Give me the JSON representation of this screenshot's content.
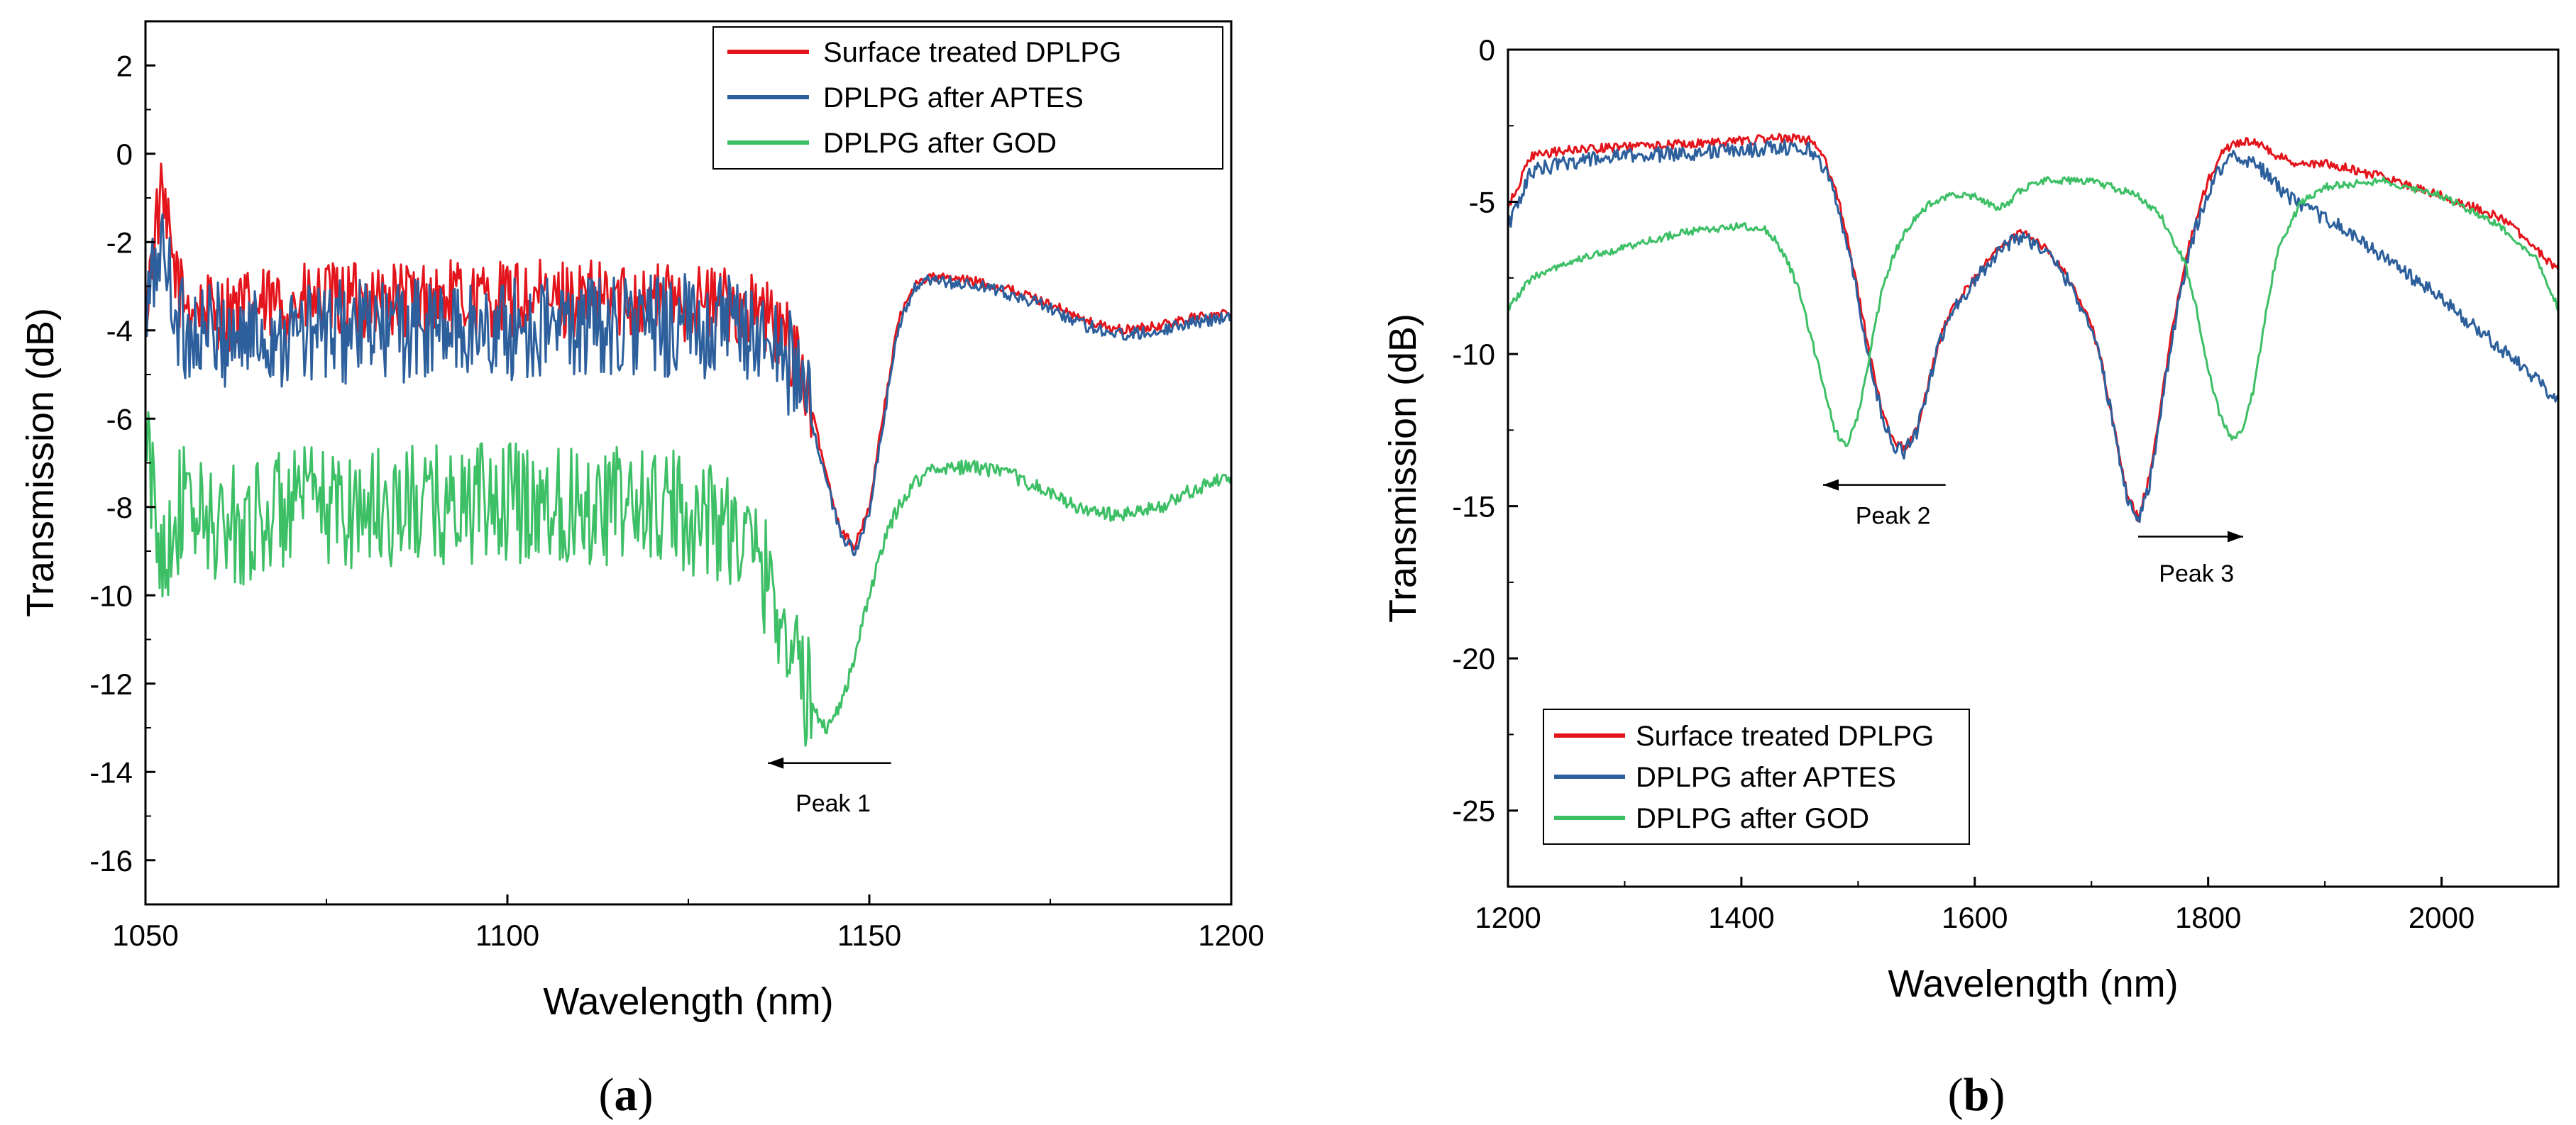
{
  "chart_data": [
    {
      "type": "line",
      "xlabel": "Wavelength (nm)",
      "ylabel": "Transmission (dB)",
      "xlim": [
        1050,
        1200
      ],
      "ylim": [
        -17,
        3
      ],
      "xticks": [
        1050,
        1100,
        1150,
        1200
      ],
      "yticks": [
        2,
        0,
        -2,
        -4,
        -6,
        -8,
        -10,
        -12,
        -14,
        -16
      ],
      "legend_position": "top-right",
      "panel_label": "a",
      "series": [
        {
          "name": "Surface treated DPLPG",
          "color": "#e3141b",
          "noise": 0.9,
          "x": [
            1050,
            1052,
            1055,
            1060,
            1070,
            1080,
            1090,
            1100,
            1110,
            1120,
            1130,
            1135,
            1140,
            1142,
            1144,
            1146,
            1148,
            1150,
            1152,
            1154,
            1156,
            1158,
            1160,
            1165,
            1170,
            1175,
            1180,
            1185,
            1190,
            1195,
            1200
          ],
          "y": [
            -3.5,
            -1.0,
            -3.3,
            -3.6,
            -3.4,
            -3.3,
            -3.3,
            -3.3,
            -3.3,
            -3.3,
            -3.4,
            -3.6,
            -4.5,
            -5.8,
            -7.2,
            -8.5,
            -8.9,
            -8.0,
            -5.8,
            -3.8,
            -3.0,
            -2.8,
            -2.8,
            -2.9,
            -3.1,
            -3.4,
            -3.8,
            -4.0,
            -3.9,
            -3.7,
            -3.6
          ]
        },
        {
          "name": "DPLPG after APTES",
          "color": "#2c5f9b",
          "noise": 1.2,
          "x": [
            1050,
            1052,
            1055,
            1060,
            1070,
            1080,
            1090,
            1100,
            1110,
            1120,
            1130,
            1135,
            1140,
            1142,
            1144,
            1146,
            1148,
            1150,
            1152,
            1154,
            1156,
            1158,
            1160,
            1165,
            1170,
            1175,
            1180,
            1185,
            1190,
            1195,
            1200
          ],
          "y": [
            -3.8,
            -2.0,
            -4.0,
            -4.1,
            -4.1,
            -4.0,
            -4.0,
            -4.0,
            -3.9,
            -3.9,
            -3.9,
            -4.1,
            -4.9,
            -6.0,
            -7.4,
            -8.6,
            -9.0,
            -8.2,
            -6.0,
            -4.0,
            -3.1,
            -2.9,
            -2.9,
            -3.0,
            -3.2,
            -3.5,
            -3.9,
            -4.1,
            -4.0,
            -3.8,
            -3.7
          ]
        },
        {
          "name": "DPLPG after GOD",
          "color": "#3dbf66",
          "noise": 1.4,
          "x": [
            1050,
            1052,
            1055,
            1060,
            1065,
            1070,
            1080,
            1090,
            1100,
            1110,
            1120,
            1130,
            1135,
            1138,
            1140,
            1142,
            1144,
            1146,
            1148,
            1150,
            1152,
            1154,
            1156,
            1158,
            1160,
            1165,
            1170,
            1175,
            1180,
            1185,
            1190,
            1195,
            1200
          ],
          "y": [
            -6.5,
            -9.0,
            -8.0,
            -8.5,
            -8.3,
            -8.0,
            -8.0,
            -8.0,
            -7.9,
            -7.9,
            -8.0,
            -8.3,
            -9.3,
            -10.5,
            -11.6,
            -12.5,
            -13.0,
            -12.5,
            -11.4,
            -10.0,
            -8.8,
            -8.0,
            -7.5,
            -7.2,
            -7.1,
            -7.1,
            -7.3,
            -7.7,
            -8.1,
            -8.2,
            -8.0,
            -7.6,
            -7.3
          ]
        }
      ],
      "annotations": [
        {
          "text": "Peak 1",
          "arrow_direction": "left",
          "arrow_from_x": 1153,
          "arrow_to_x": 1136,
          "arrow_y": -13.8,
          "text_x": 1145,
          "text_y": -14.7
        }
      ]
    },
    {
      "type": "line",
      "xlabel": "Wavelength (nm)",
      "ylabel": "Transmission (dB)",
      "xlim": [
        1200,
        2100
      ],
      "ylim": [
        -27.5,
        0
      ],
      "xticks": [
        1200,
        1400,
        1600,
        1800,
        2000
      ],
      "yticks": [
        0,
        -5,
        -10,
        -15,
        -20,
        -25
      ],
      "legend_position": "bottom-left",
      "panel_label": "b",
      "series": [
        {
          "name": "Surface treated DPLPG",
          "color": "#e3141b",
          "noise": 0.15,
          "x": [
            1200,
            1220,
            1250,
            1300,
            1350,
            1400,
            1440,
            1460,
            1470,
            1480,
            1490,
            1500,
            1510,
            1520,
            1530,
            1540,
            1550,
            1560,
            1570,
            1580,
            1600,
            1620,
            1640,
            1660,
            1680,
            1700,
            1710,
            1720,
            1730,
            1740,
            1750,
            1760,
            1770,
            1780,
            1790,
            1800,
            1810,
            1820,
            1840,
            1860,
            1880,
            1900,
            1950,
            2000,
            2050,
            2080,
            2100
          ],
          "y": [
            -5.2,
            -3.5,
            -3.3,
            -3.2,
            -3.1,
            -3.0,
            -2.9,
            -3.0,
            -3.5,
            -4.5,
            -6.0,
            -8.0,
            -10.0,
            -11.8,
            -12.9,
            -13.1,
            -12.5,
            -11.0,
            -9.5,
            -8.5,
            -7.5,
            -6.5,
            -6.0,
            -6.5,
            -7.5,
            -9.0,
            -10.5,
            -12.5,
            -14.5,
            -15.4,
            -14.0,
            -11.5,
            -9.0,
            -7.0,
            -5.5,
            -4.3,
            -3.5,
            -3.1,
            -3.0,
            -3.5,
            -3.8,
            -3.7,
            -4.2,
            -4.8,
            -5.5,
            -6.5,
            -7.3
          ]
        },
        {
          "name": "DPLPG after APTES",
          "color": "#2c5f9b",
          "noise": 0.25,
          "x": [
            1200,
            1220,
            1250,
            1300,
            1350,
            1400,
            1440,
            1460,
            1470,
            1480,
            1490,
            1500,
            1510,
            1520,
            1530,
            1540,
            1550,
            1560,
            1570,
            1580,
            1600,
            1620,
            1640,
            1660,
            1680,
            1700,
            1710,
            1720,
            1730,
            1740,
            1750,
            1760,
            1770,
            1780,
            1790,
            1800,
            1810,
            1820,
            1840,
            1860,
            1880,
            1900,
            1950,
            2000,
            2050,
            2080,
            2100
          ],
          "y": [
            -5.8,
            -4.0,
            -3.7,
            -3.5,
            -3.4,
            -3.3,
            -3.2,
            -3.3,
            -3.8,
            -4.8,
            -6.2,
            -8.2,
            -10.2,
            -12.0,
            -13.0,
            -13.2,
            -12.6,
            -11.1,
            -9.6,
            -8.6,
            -7.6,
            -6.6,
            -6.1,
            -6.6,
            -7.6,
            -9.1,
            -10.6,
            -12.6,
            -14.6,
            -15.5,
            -14.2,
            -11.8,
            -9.3,
            -7.3,
            -5.8,
            -4.7,
            -3.9,
            -3.5,
            -3.7,
            -4.5,
            -5.2,
            -5.5,
            -6.8,
            -8.2,
            -9.8,
            -10.8,
            -11.5
          ]
        },
        {
          "name": "DPLPG after GOD",
          "color": "#3dbf66",
          "noise": 0.12,
          "x": [
            1200,
            1220,
            1250,
            1300,
            1350,
            1400,
            1420,
            1430,
            1440,
            1450,
            1460,
            1470,
            1480,
            1490,
            1500,
            1510,
            1520,
            1530,
            1540,
            1550,
            1560,
            1580,
            1600,
            1620,
            1630,
            1640,
            1660,
            1700,
            1740,
            1760,
            1780,
            1790,
            1800,
            1810,
            1820,
            1830,
            1840,
            1850,
            1860,
            1880,
            1900,
            1950,
            2000,
            2050,
            2080,
            2100
          ],
          "y": [
            -8.5,
            -7.5,
            -7.0,
            -6.5,
            -6.0,
            -5.8,
            -5.9,
            -6.3,
            -7.0,
            -8.0,
            -9.5,
            -11.0,
            -12.5,
            -13.1,
            -12.0,
            -10.0,
            -8.0,
            -6.8,
            -6.0,
            -5.5,
            -5.1,
            -4.8,
            -4.8,
            -5.2,
            -5.0,
            -4.6,
            -4.3,
            -4.3,
            -4.8,
            -5.5,
            -7.0,
            -8.5,
            -10.5,
            -12.0,
            -12.8,
            -12.5,
            -11.0,
            -8.5,
            -6.5,
            -5.0,
            -4.5,
            -4.3,
            -4.8,
            -5.8,
            -6.8,
            -8.5
          ]
        }
      ],
      "annotations": [
        {
          "text": "Peak 2",
          "arrow_direction": "left",
          "arrow_from_x": 1575,
          "arrow_to_x": 1470,
          "arrow_y": -14.3,
          "text_x": 1530,
          "text_y": -15.3
        },
        {
          "text": "Peak 3",
          "arrow_direction": "right",
          "arrow_from_x": 1740,
          "arrow_to_x": 1830,
          "arrow_y": -16.0,
          "text_x": 1790,
          "text_y": -17.2
        }
      ]
    }
  ]
}
